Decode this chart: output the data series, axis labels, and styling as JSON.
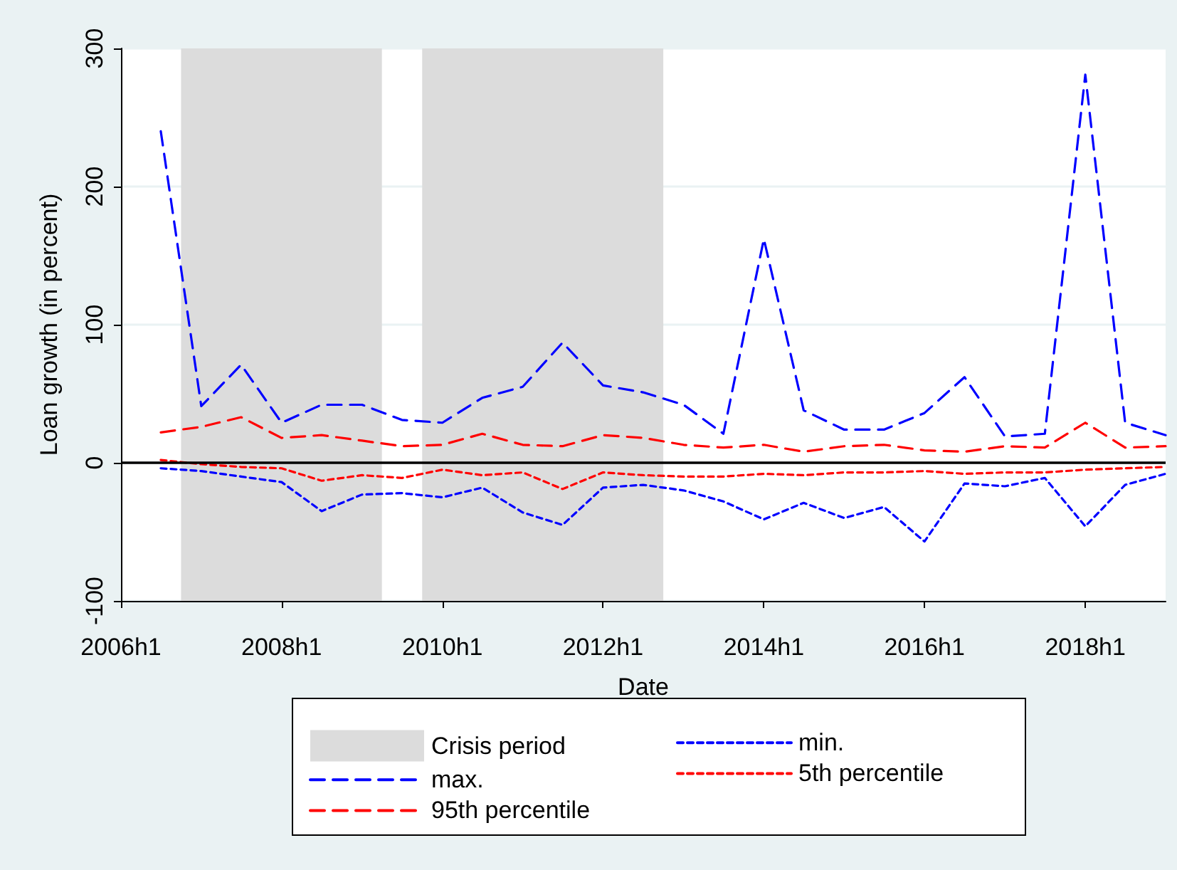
{
  "chart_data": {
    "type": "line",
    "xlabel": "Date",
    "ylabel": "Loan growth (in percent)",
    "x": [
      "2006-07",
      "2007-01",
      "2007-07",
      "2008-01",
      "2008-07",
      "2009-01",
      "2009-07",
      "2010-01",
      "2010-07",
      "2011-01",
      "2011-07",
      "2012-01",
      "2012-07",
      "2013-01",
      "2013-07",
      "2014-01",
      "2014-07",
      "2015-01",
      "2015-07",
      "2016-01",
      "2016-07",
      "2017-01",
      "2017-07",
      "2018-01",
      "2018-07",
      "2019-01"
    ],
    "series": [
      {
        "name": "max.",
        "color": "#0000ff",
        "line_style": "dashed",
        "values": [
          240,
          41,
          71,
          29,
          42,
          42,
          31,
          29,
          47,
          55,
          87,
          56,
          51,
          42,
          21,
          162,
          38,
          24,
          24,
          36,
          62,
          19,
          21,
          281,
          29,
          20
        ]
      },
      {
        "name": "95th percentile",
        "color": "#ff0000",
        "line_style": "dashed",
        "values": [
          22,
          26,
          33,
          18,
          20,
          16,
          12,
          13,
          21,
          13,
          12,
          20,
          18,
          13,
          11,
          13,
          8,
          12,
          13,
          9,
          8,
          12,
          11,
          29,
          11,
          12
        ]
      },
      {
        "name": "min.",
        "color": "#0000ff",
        "line_style": "dotted",
        "values": [
          -4,
          -6,
          -10,
          -14,
          -35,
          -23,
          -22,
          -25,
          -18,
          -36,
          -45,
          -18,
          -16,
          -20,
          -28,
          -41,
          -29,
          -40,
          -32,
          -57,
          -15,
          -17,
          -11,
          -46,
          -16,
          -8
        ]
      },
      {
        "name": "5th percentile",
        "color": "#ff0000",
        "line_style": "dotted",
        "values": [
          2,
          -1,
          -3,
          -4,
          -13,
          -9,
          -11,
          -5,
          -9,
          -7,
          -19,
          -7,
          -9,
          -10,
          -10,
          -8,
          -9,
          -7,
          -7,
          -6,
          -8,
          -7,
          -7,
          -5,
          -4,
          -3
        ]
      }
    ],
    "xlim": [
      "2006-01",
      "2019-01"
    ],
    "xticks": [
      {
        "value": "2006-01",
        "label": "2006h1"
      },
      {
        "value": "2008-01",
        "label": "2008h1"
      },
      {
        "value": "2010-01",
        "label": "2010h1"
      },
      {
        "value": "2012-01",
        "label": "2012h1"
      },
      {
        "value": "2014-01",
        "label": "2014h1"
      },
      {
        "value": "2016-01",
        "label": "2016h1"
      },
      {
        "value": "2018-01",
        "label": "2018h1"
      }
    ],
    "ylim": [
      -100,
      300
    ],
    "yticks": [
      -100,
      0,
      100,
      200,
      300
    ],
    "bands": [
      {
        "axis": "x",
        "from": "2006-10",
        "to": "2009-04",
        "label": "Crisis period",
        "color": "#dcdcdc"
      },
      {
        "axis": "x",
        "from": "2009-10",
        "to": "2012-10",
        "color": "#dcdcdc"
      }
    ],
    "ref_lines": [
      {
        "axis": "y",
        "value": 0,
        "color": "#000000"
      }
    ],
    "grid": "y",
    "legend": "bottom",
    "marker": "none"
  }
}
